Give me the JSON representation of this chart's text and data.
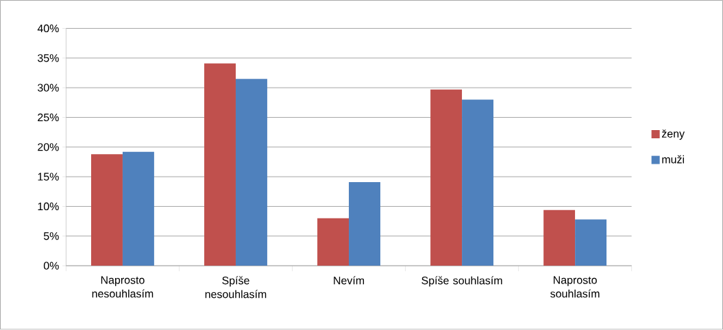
{
  "chart_data": {
    "type": "bar",
    "categories": [
      "Naprosto nesouhlasím",
      "Spíše nesouhlasím",
      "Nevím",
      "Spíše souhlasím",
      "Naprosto souhlasím"
    ],
    "series": [
      {
        "name": "ženy",
        "color": "#c0504d",
        "values": [
          18.8,
          34.1,
          8.0,
          29.7,
          9.4
        ]
      },
      {
        "name": "muži",
        "color": "#4f81bd",
        "values": [
          19.2,
          31.5,
          14.1,
          28.0,
          7.8
        ]
      }
    ],
    "ylim": [
      0,
      40
    ],
    "yticks": [
      {
        "value": 0,
        "label": "0%"
      },
      {
        "value": 5,
        "label": "5%"
      },
      {
        "value": 10,
        "label": "10%"
      },
      {
        "value": 15,
        "label": "15%"
      },
      {
        "value": 20,
        "label": "20%"
      },
      {
        "value": 25,
        "label": "25%"
      },
      {
        "value": 30,
        "label": "30%"
      },
      {
        "value": 35,
        "label": "35%"
      },
      {
        "value": 40,
        "label": "40%"
      }
    ],
    "grid": "y",
    "legend": "right"
  }
}
